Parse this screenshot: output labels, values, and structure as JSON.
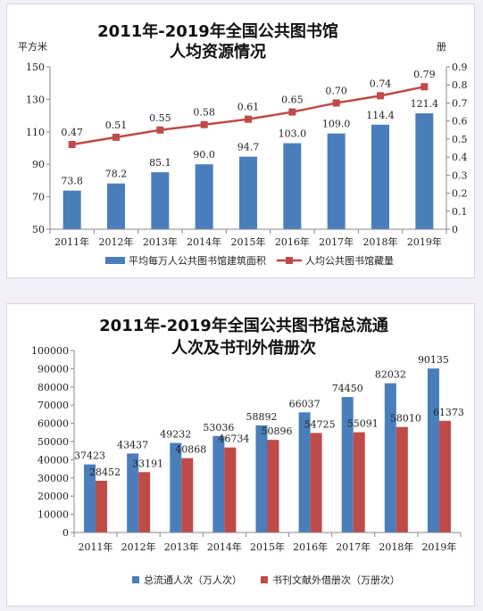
{
  "chart_data": [
    {
      "type": "bar-line",
      "title": [
        "2011年-2019年全国公共图书馆",
        "人均资源情况"
      ],
      "left_unit": "平方米",
      "right_unit": "册",
      "categories": [
        "2011年",
        "2012年",
        "2013年",
        "2014年",
        "2015年",
        "2016年",
        "2017年",
        "2018年",
        "2019年"
      ],
      "left_axis": {
        "min": 50,
        "max": 150,
        "ticks": [
          50,
          70,
          90,
          110,
          130,
          150
        ]
      },
      "right_axis": {
        "min": 0,
        "max": 0.9,
        "ticks": [
          0,
          0.1,
          0.2,
          0.3,
          0.4,
          0.5,
          0.6,
          0.7,
          0.8,
          0.9
        ]
      },
      "series": [
        {
          "name": "平均每万人公共图书馆建筑面积",
          "kind": "bar",
          "axis": "left",
          "color": "#4a7ebb",
          "values": [
            73.8,
            78.2,
            85.1,
            90.0,
            94.7,
            103.0,
            109.0,
            114.4,
            121.4
          ],
          "labels": [
            "73.8",
            "78.2",
            "85.1",
            "90.0",
            "94.7",
            "103.0",
            "109.0",
            "114.4",
            "121.4"
          ]
        },
        {
          "name": "人均公共图书馆藏量",
          "kind": "line",
          "axis": "right",
          "color": "#be4b48",
          "values": [
            0.47,
            0.51,
            0.55,
            0.58,
            0.61,
            0.65,
            0.7,
            0.74,
            0.79
          ],
          "labels": [
            "0.47",
            "0.51",
            "0.55",
            "0.58",
            "0.61",
            "0.65",
            "0.70",
            "0.74",
            "0.79"
          ]
        }
      ]
    },
    {
      "type": "bar",
      "title": [
        "2011年-2019年全国公共图书馆总流通",
        "人次及书刊外借册次"
      ],
      "categories": [
        "2011年",
        "2012年",
        "2013年",
        "2014年",
        "2015年",
        "2016年",
        "2017年",
        "2018年",
        "2019年"
      ],
      "y_axis": {
        "min": 0,
        "max": 100000,
        "ticks": [
          0,
          10000,
          20000,
          30000,
          40000,
          50000,
          60000,
          70000,
          80000,
          90000,
          100000
        ]
      },
      "series": [
        {
          "name": "总流通人次（万人次）",
          "color": "#4a7ebb",
          "values": [
            37423,
            43437,
            49232,
            53036,
            58892,
            66037,
            74450,
            82032,
            90135
          ]
        },
        {
          "name": "书刊文献外借册次（万册次）",
          "color": "#be4b48",
          "values": [
            28452,
            33191,
            40868,
            46734,
            50896,
            54725,
            55091,
            58010,
            61373
          ]
        }
      ]
    }
  ]
}
